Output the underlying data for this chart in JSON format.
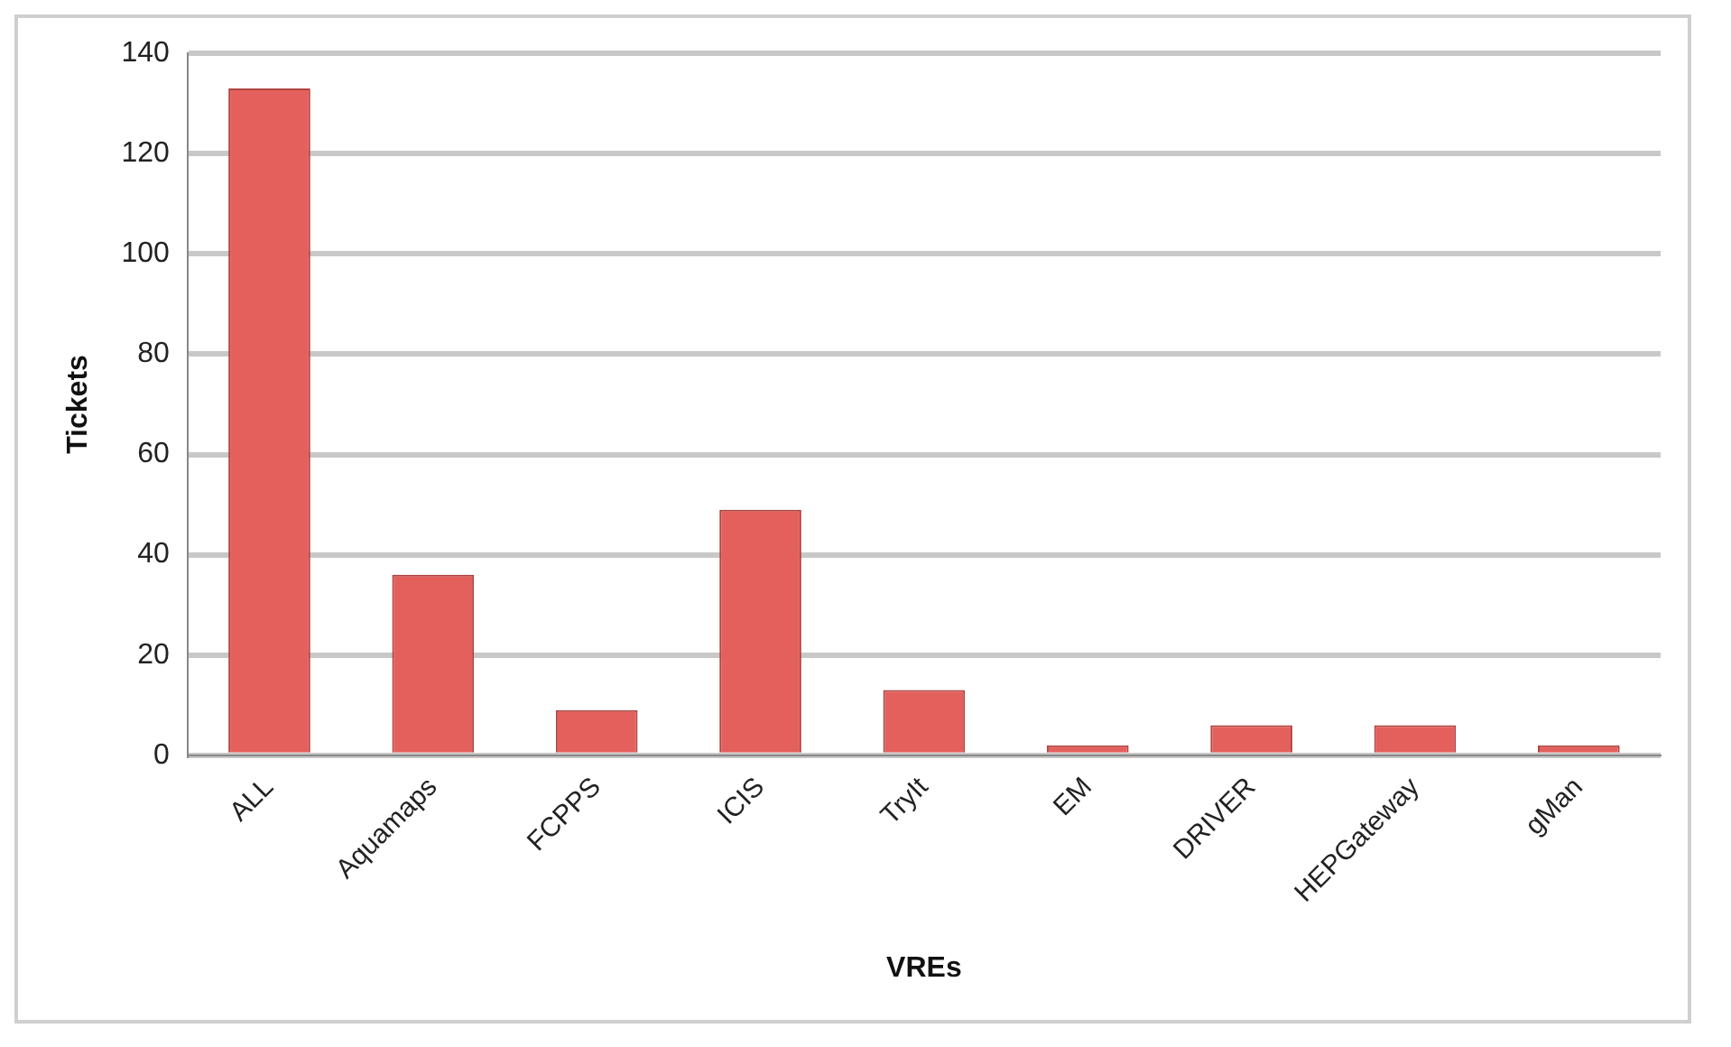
{
  "chart_data": {
    "type": "bar",
    "xlabel": "VREs",
    "ylabel": "Tickets",
    "categories": [
      "ALL",
      "Aquamaps",
      "FCPPS",
      "ICIS",
      "TryIt",
      "EM",
      "DRIVER",
      "HEPGateway",
      "gMan"
    ],
    "values": [
      133,
      36,
      9,
      49,
      13,
      2,
      6,
      6,
      2
    ],
    "color": "#e4605c",
    "ylim": [
      0,
      140
    ],
    "yticks": [
      0,
      20,
      40,
      60,
      80,
      100,
      120,
      140
    ],
    "grid": "y",
    "legend": false
  }
}
